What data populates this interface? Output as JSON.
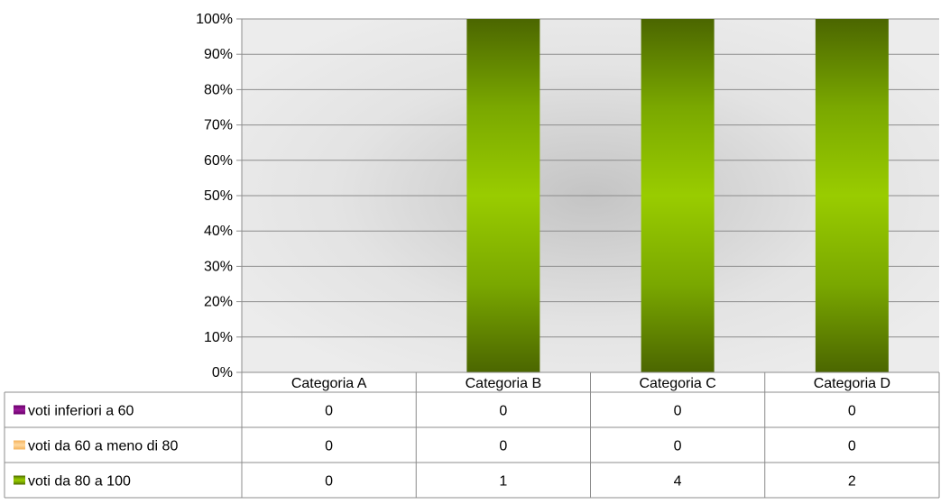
{
  "chart_data": {
    "type": "bar",
    "stacked": "percent",
    "categories": [
      "Categoria A",
      "Categoria B",
      "Categoria C",
      "Categoria D"
    ],
    "series": [
      {
        "name": "voti inferiori a 60",
        "values": [
          0,
          0,
          0,
          0
        ],
        "color": "#8b0a8b"
      },
      {
        "name": "voti da 60 a meno di 80",
        "values": [
          0,
          0,
          0,
          0
        ],
        "color": "#f5b35a"
      },
      {
        "name": "voti da 80 a 100",
        "values": [
          0,
          1,
          4,
          2
        ],
        "color": "#99cc00"
      }
    ],
    "y_ticks": [
      "0%",
      "10%",
      "20%",
      "30%",
      "40%",
      "50%",
      "60%",
      "70%",
      "80%",
      "90%",
      "100%"
    ],
    "ylim": [
      0,
      100
    ],
    "grid": true,
    "legend": "data-table-left"
  }
}
